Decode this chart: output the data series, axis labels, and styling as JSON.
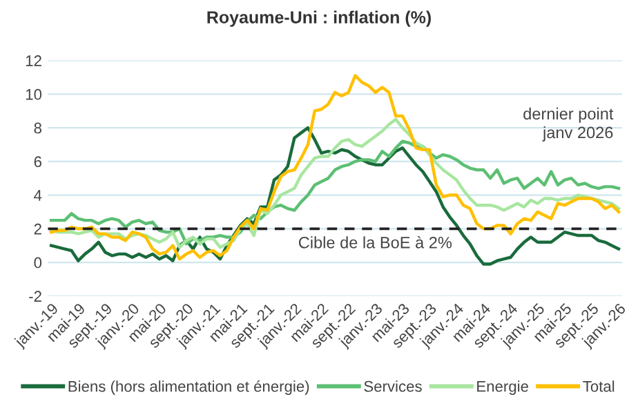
{
  "chart_data": {
    "type": "line",
    "title": "Royaume-Uni : inflation (%)",
    "categories": [
      "janv.-19",
      null,
      null,
      null,
      "mai-19",
      null,
      null,
      null,
      "sept.-19",
      null,
      null,
      null,
      "janv.-20",
      null,
      null,
      null,
      "mai-20",
      null,
      null,
      null,
      "sept.-20",
      null,
      null,
      null,
      "janv.-21",
      null,
      null,
      null,
      "mai-21",
      null,
      null,
      null,
      "sept.-21",
      null,
      null,
      null,
      "janv.-22",
      null,
      null,
      null,
      "mai-22",
      null,
      null,
      null,
      "sept.-22",
      null,
      null,
      null,
      "janv.-23",
      null,
      null,
      null,
      "mai-23",
      null,
      null,
      null,
      "sept.-23",
      null,
      null,
      null,
      "janv.-24",
      null,
      null,
      null,
      "mai-24",
      null,
      null,
      null,
      "sept.-24",
      null,
      null,
      null,
      "janv.-25",
      null,
      null,
      null,
      "mai-25",
      null,
      null,
      null,
      "sept.-25",
      null,
      null,
      null,
      "janv.-26"
    ],
    "series": [
      {
        "name": "Biens (hors alimentation et énergie)",
        "color": "#1a6b3c",
        "values": [
          1.0,
          0.9,
          0.8,
          0.7,
          0.1,
          0.5,
          0.8,
          1.2,
          0.6,
          0.4,
          0.5,
          0.5,
          0.3,
          0.5,
          0.3,
          0.5,
          0.2,
          0.4,
          0.1,
          1.0,
          1.3,
          0.8,
          1.5,
          0.8,
          0.6,
          0.2,
          1.0,
          1.6,
          2.2,
          2.6,
          2.3,
          3.3,
          3.3,
          4.9,
          5.2,
          5.7,
          7.4,
          7.7,
          8.0,
          7.3,
          6.5,
          6.6,
          6.5,
          6.7,
          6.6,
          6.3,
          6.1,
          5.9,
          5.8,
          5.8,
          6.2,
          6.6,
          6.8,
          6.3,
          5.8,
          5.4,
          4.8,
          4.2,
          3.3,
          2.7,
          2.2,
          1.6,
          1.1,
          0.4,
          -0.1,
          -0.1,
          0.1,
          0.2,
          0.3,
          0.8,
          1.2,
          1.5,
          1.2,
          1.2,
          1.2,
          1.5,
          1.8,
          1.7,
          1.6,
          1.6,
          1.6,
          1.3,
          1.2,
          1.0,
          0.8
        ]
      },
      {
        "name": "Services",
        "color": "#5cbf73",
        "values": [
          2.5,
          2.5,
          2.5,
          2.9,
          2.6,
          2.5,
          2.5,
          2.3,
          2.5,
          2.6,
          2.5,
          2.1,
          2.4,
          2.5,
          2.3,
          2.4,
          1.9,
          1.8,
          1.8,
          2.0,
          1.1,
          1.4,
          1.3,
          1.5,
          1.5,
          1.6,
          1.5,
          1.5,
          1.8,
          2.4,
          2.8,
          2.6,
          3.0,
          3.3,
          3.4,
          3.2,
          3.1,
          3.6,
          4.0,
          4.6,
          4.8,
          5.0,
          5.5,
          5.7,
          5.8,
          6.0,
          6.1,
          6.1,
          6.0,
          6.6,
          6.3,
          6.8,
          7.2,
          7.1,
          6.9,
          6.9,
          6.5,
          6.2,
          6.4,
          6.3,
          6.1,
          5.8,
          5.6,
          5.5,
          5.5,
          5.0,
          5.5,
          4.7,
          4.9,
          5.0,
          4.4,
          4.7,
          5.0,
          4.6,
          5.4,
          4.6,
          4.9,
          5.0,
          4.6,
          4.7,
          4.5,
          4.4,
          4.5,
          4.5,
          4.4
        ]
      },
      {
        "name": "Energie",
        "color": "#a8e6a0",
        "values": [
          1.9,
          1.8,
          1.8,
          1.8,
          1.7,
          1.8,
          1.9,
          1.5,
          1.7,
          1.7,
          1.7,
          1.4,
          1.6,
          1.7,
          1.6,
          1.4,
          1.2,
          1.4,
          1.8,
          0.9,
          1.3,
          1.5,
          1.1,
          1.4,
          1.4,
          0.9,
          1.1,
          1.3,
          2.0,
          2.3,
          1.6,
          3.1,
          2.9,
          3.4,
          4.0,
          4.2,
          4.4,
          5.2,
          5.7,
          6.2,
          6.3,
          6.3,
          6.8,
          7.2,
          7.3,
          7.0,
          6.9,
          7.2,
          7.5,
          7.8,
          8.2,
          8.5,
          8.0,
          7.6,
          7.1,
          6.9,
          6.4,
          5.9,
          5.5,
          5.2,
          4.9,
          4.3,
          3.8,
          3.4,
          3.4,
          3.4,
          3.3,
          3.1,
          3.3,
          3.5,
          3.3,
          3.7,
          3.5,
          3.8,
          3.8,
          3.7,
          3.8,
          3.8,
          4.0,
          3.9,
          3.8,
          3.7,
          3.6,
          3.5,
          3.2
        ]
      },
      {
        "name": "Total",
        "color": "#ffc000",
        "values": [
          1.8,
          1.9,
          1.9,
          2.1,
          2.0,
          2.0,
          2.1,
          1.7,
          1.7,
          1.5,
          1.5,
          1.3,
          1.8,
          1.7,
          1.5,
          0.8,
          0.5,
          0.6,
          1.0,
          0.2,
          0.5,
          0.7,
          0.3,
          0.6,
          0.7,
          0.4,
          0.7,
          1.5,
          2.1,
          2.5,
          2.0,
          3.2,
          3.1,
          4.2,
          5.1,
          5.4,
          5.5,
          6.2,
          7.0,
          9.0,
          9.1,
          9.4,
          10.1,
          9.9,
          10.1,
          11.1,
          10.7,
          10.5,
          10.1,
          10.4,
          10.1,
          8.7,
          8.7,
          7.9,
          6.8,
          6.7,
          6.7,
          4.6,
          3.9,
          4.0,
          4.0,
          3.4,
          3.2,
          2.3,
          2.0,
          2.0,
          2.2,
          2.2,
          1.7,
          2.3,
          2.6,
          2.5,
          3.0,
          2.8,
          2.6,
          3.5,
          3.4,
          3.6,
          3.8,
          3.8,
          3.8,
          3.6,
          3.2,
          3.4,
          3.0
        ]
      }
    ],
    "ylim": [
      -2,
      12
    ],
    "yticks": [
      -2,
      0,
      2,
      4,
      6,
      8,
      10,
      12
    ],
    "grid": "y",
    "legend": "bottom",
    "ref_lines": [
      {
        "axis": "y",
        "value": 2,
        "label": "Cible de la BoE à 2%",
        "color": "#222222",
        "line_style": "dashed"
      }
    ],
    "annotations": [
      "dernier point\njanv 2026"
    ]
  }
}
